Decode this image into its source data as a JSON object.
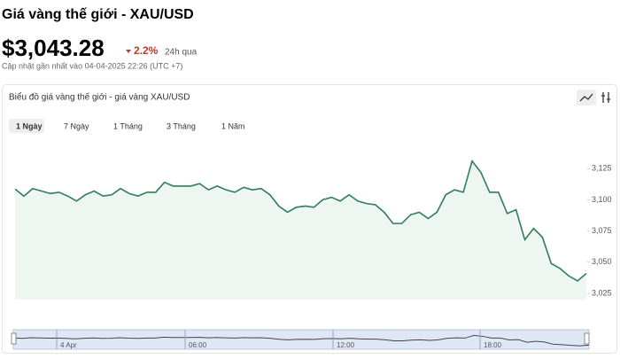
{
  "header": {
    "title": "Giá vàng thế giới - XAU/USD",
    "price": "$3,043.28",
    "change": "2.2%",
    "change_period": "24h qua",
    "updated": "Cập nhật gần nhất vào 04-04-2025 22:26 (UTC +7)"
  },
  "chart_data": {
    "type": "area",
    "title": "Biểu đồ giá vàng thế giới - giá vàng XAU/USD",
    "tabs": [
      "1 Ngày",
      "7 Ngày",
      "1 Tháng",
      "3 Tháng",
      "1 Năm"
    ],
    "color": "#2e7d5b",
    "fill": "#eef6f1",
    "values": [
      3108.6,
      3102.9,
      3109,
      3107,
      3105,
      3106,
      3103,
      3099,
      3104,
      3107,
      3103,
      3104,
      3109,
      3105,
      3103,
      3106,
      3106,
      3114,
      3111,
      3111,
      3111,
      3113,
      3108,
      3111,
      3108,
      3106,
      3110,
      3108,
      3109,
      3104,
      3095,
      3090,
      3094,
      3095,
      3094,
      3100,
      3102,
      3099,
      3104,
      3099,
      3097,
      3096,
      3090,
      3081,
      3081,
      3088,
      3090,
      3085,
      3090,
      3104,
      3108,
      3106,
      3131,
      3122,
      3106,
      3106,
      3089,
      3092,
      3068,
      3077,
      3070,
      3049,
      3045,
      3039,
      3035,
      3041
    ],
    "ylim": [
      3020,
      3150
    ],
    "yticks": [
      {
        "value": 3025,
        "label": "3,025"
      },
      {
        "value": 3050,
        "label": "3,050"
      },
      {
        "value": 3075,
        "label": "3,075"
      },
      {
        "value": 3100,
        "label": "3,100"
      },
      {
        "value": 3125,
        "label": "3,125"
      }
    ],
    "navigator_labels": [
      "4 Apr",
      "06:00",
      "12:00",
      "18:00"
    ]
  }
}
